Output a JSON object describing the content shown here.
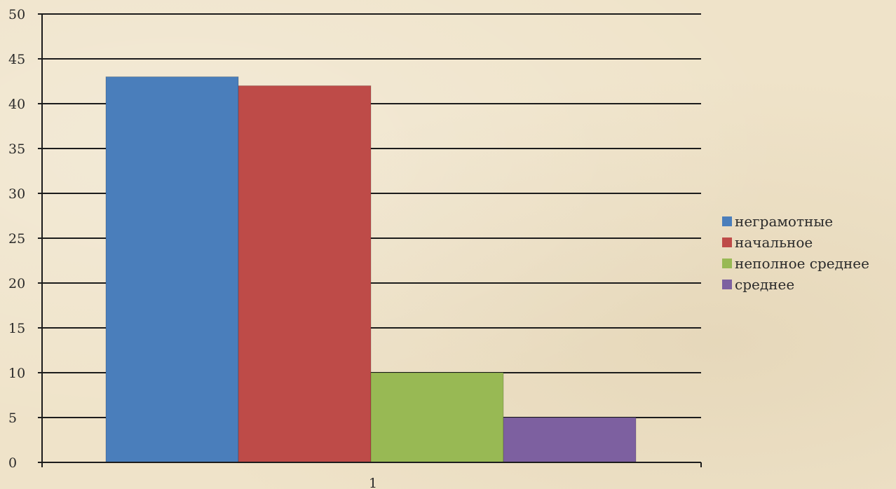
{
  "chart_data": {
    "type": "bar",
    "categories": [
      "1"
    ],
    "series": [
      {
        "name": "неграмотные",
        "values": [
          43
        ],
        "color": "#4a7ebb"
      },
      {
        "name": "начальное",
        "values": [
          42
        ],
        "color": "#be4b48"
      },
      {
        "name": "неполное среднее",
        "values": [
          10
        ],
        "color": "#98b954"
      },
      {
        "name": "среднее",
        "values": [
          5
        ],
        "color": "#7d60a0"
      }
    ],
    "yticks": [
      "0",
      "5",
      "10",
      "15",
      "20",
      "25",
      "30",
      "35",
      "40",
      "45",
      "50"
    ],
    "ylim": [
      0,
      50
    ],
    "grid": true,
    "legend_position": "right"
  }
}
